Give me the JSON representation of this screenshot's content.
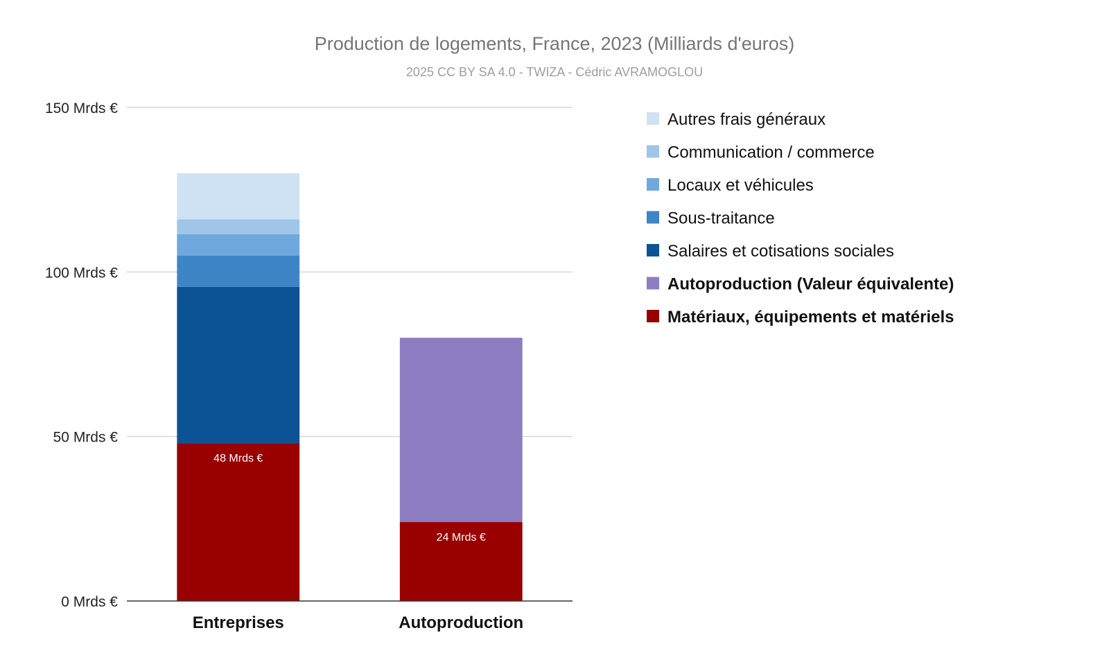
{
  "chart_data": {
    "type": "bar",
    "stacked": true,
    "title": "Production de logements, France, 2023 (Milliards d'euros)",
    "subtitle": "2025 CC BY SA 4.0 - TWIZA - Cédric AVRAMOGLOU",
    "categories": [
      "Entreprises",
      "Autoproduction"
    ],
    "ylim": [
      0,
      150
    ],
    "yticks": [
      0,
      50,
      100,
      150
    ],
    "ytick_labels": [
      "0 Mrds €",
      "50 Mrds €",
      "100 Mrds €",
      "150 Mrds €"
    ],
    "grid": true,
    "legend_position": "right",
    "series": [
      {
        "name": "Matériaux, équipements et matériels",
        "values": [
          48,
          24
        ],
        "color": "#990000",
        "bold": true,
        "data_labels": [
          "48 Mrds €",
          "24 Mrds €"
        ]
      },
      {
        "name": "Autoproduction (Valeur équivalente)",
        "values": [
          0,
          56
        ],
        "color": "#8e7cc3",
        "bold": true
      },
      {
        "name": "Salaires et cotisations sociales",
        "values": [
          47.5,
          0
        ],
        "color": "#0b5394",
        "bold": false
      },
      {
        "name": "Sous-traitance",
        "values": [
          9.5,
          0
        ],
        "color": "#3d85c6",
        "bold": false
      },
      {
        "name": "Locaux et véhicules",
        "values": [
          6.5,
          0
        ],
        "color": "#6fa8dc",
        "bold": false
      },
      {
        "name": "Communication / commerce",
        "values": [
          4.5,
          0
        ],
        "color": "#9fc5e8",
        "bold": false
      },
      {
        "name": "Autres frais généraux",
        "values": [
          14,
          0
        ],
        "color": "#cfe2f3",
        "bold": false
      }
    ]
  }
}
